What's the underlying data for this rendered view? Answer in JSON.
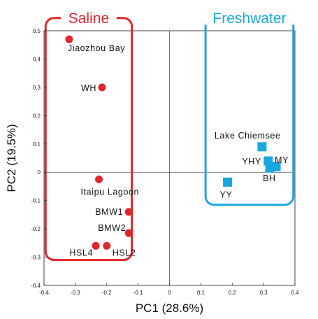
{
  "chart_data": {
    "type": "scatter",
    "xlabel": "PC1 (28.6%)",
    "ylabel": "PC2 (19.5%)",
    "xlim": [
      -0.4,
      0.4
    ],
    "ylim": [
      -0.4,
      0.5
    ],
    "x_ticks": [
      "-0.4",
      "-0.3",
      "-0.2",
      "-0.1",
      "0",
      "0.1",
      "0.2",
      "0.3",
      "0.4"
    ],
    "y_ticks": [
      "0.5",
      "0.4",
      "0.3",
      "0.2",
      "0.1",
      "0",
      "-0.1",
      "-0.2",
      "-0.3",
      "-0.4"
    ],
    "grid": false,
    "groups": [
      {
        "title": "Saline",
        "color": "#e0262b",
        "marker": "circle",
        "box_x": [
          -0.395,
          -0.12
        ],
        "box_y": [
          -0.31,
          0.545
        ]
      },
      {
        "title": "Freshwater",
        "color": "#18a7e0",
        "marker": "square",
        "box_x": [
          0.115,
          0.395
        ],
        "box_y": [
          -0.115,
          0.545
        ]
      }
    ],
    "series": [
      {
        "group": 0,
        "points": [
          {
            "label": "Jiaozhou Bay",
            "x": -0.32,
            "y": 0.47
          },
          {
            "label": "WH",
            "x": -0.215,
            "y": 0.3
          },
          {
            "label": "Itaipu  Lagoon",
            "x": -0.225,
            "y": -0.025
          },
          {
            "label": "BMW1",
            "x": -0.13,
            "y": -0.14
          },
          {
            "label": "BMW2",
            "x": -0.13,
            "y": -0.215
          },
          {
            "label": "HSL4",
            "x": -0.235,
            "y": -0.26
          },
          {
            "label": "HSL2",
            "x": -0.2,
            "y": -0.26
          }
        ]
      },
      {
        "group": 1,
        "points": [
          {
            "label": "Lake  Chiemsee",
            "x": 0.295,
            "y": 0.09
          },
          {
            "label": "YHY",
            "x": 0.315,
            "y": 0.04
          },
          {
            "label": "MY",
            "x": 0.34,
            "y": 0.02
          },
          {
            "label": "BH",
            "x": 0.32,
            "y": 0.015
          },
          {
            "label": "YY",
            "x": 0.185,
            "y": -0.035
          }
        ]
      }
    ]
  }
}
